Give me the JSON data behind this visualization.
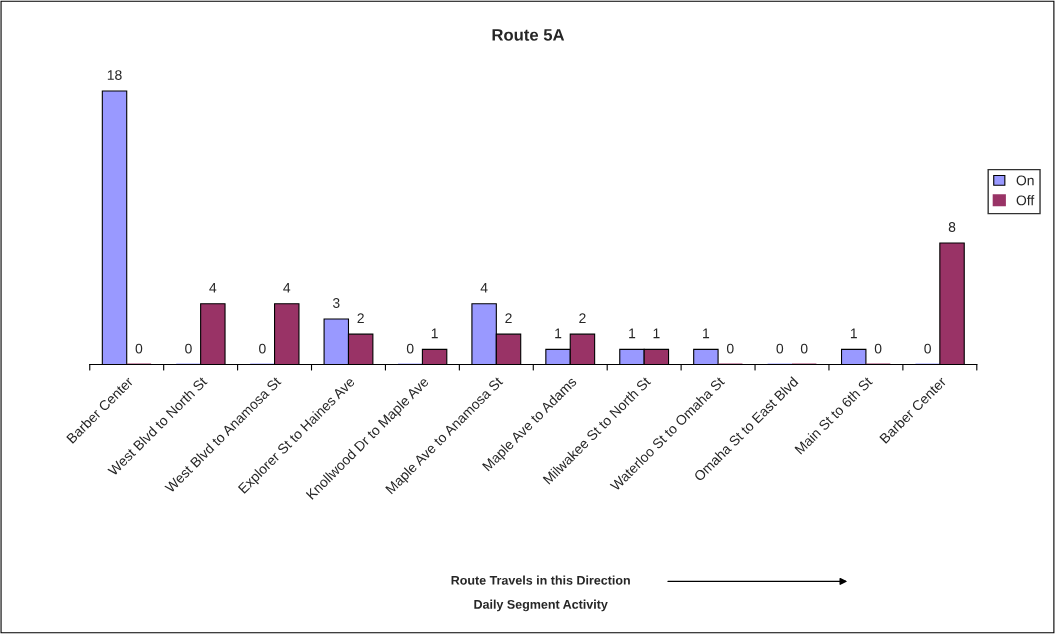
{
  "chart_data": {
    "type": "bar",
    "title": "Route 5A",
    "categories": [
      "Barber Center",
      "West Blvd to North St",
      "West Blvd to Anamosa St",
      "Explorer St to Haines Ave",
      "Knollwood Dr to Maple Ave",
      "Maple Ave to Anamosa St",
      "Maple Ave to Adams",
      "Milwakee St to North St",
      "Waterloo St to Omaha St",
      "Omaha St to East Blvd",
      "Main St to 6th St",
      "Barber Center"
    ],
    "series": [
      {
        "name": "On",
        "color": "#9999ff",
        "values": [
          18,
          0,
          0,
          3,
          0,
          4,
          1,
          1,
          1,
          0,
          1,
          0
        ]
      },
      {
        "name": "Off",
        "color": "#993366",
        "values": [
          0,
          4,
          4,
          2,
          1,
          2,
          2,
          1,
          0,
          0,
          0,
          8
        ]
      }
    ],
    "data_labels": true,
    "legend": "right",
    "grid": false,
    "annotations": [
      "Route Travels in this Direction",
      "Daily Segment Activity"
    ]
  }
}
